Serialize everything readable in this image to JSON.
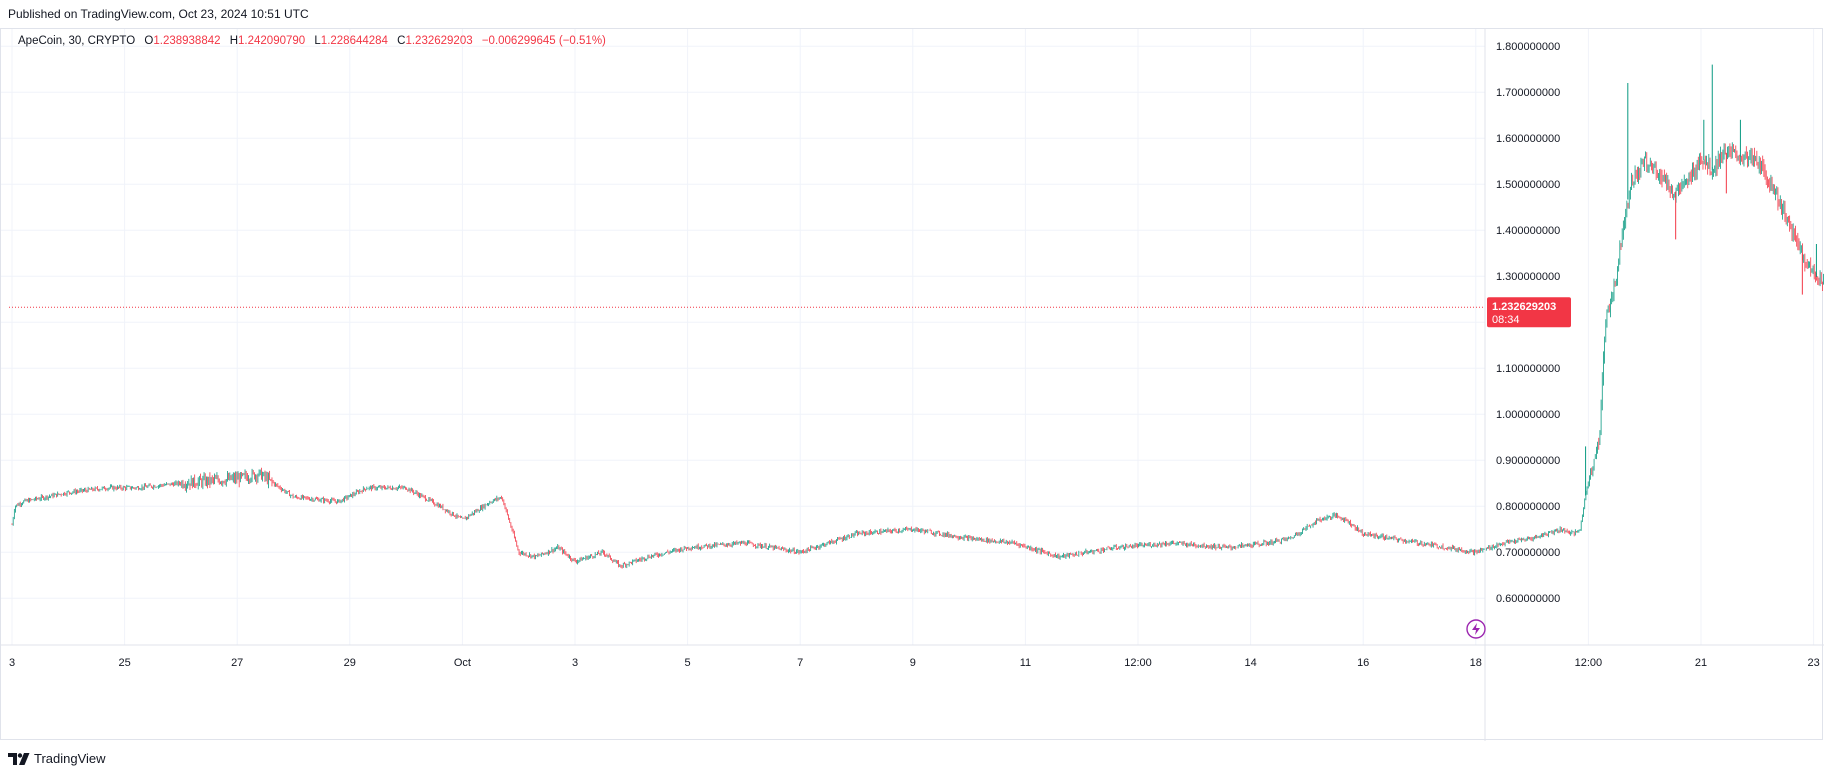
{
  "published": "Published on TradingView.com, Oct 23, 2024 10:51 UTC",
  "legend": {
    "symbol": "ApeCoin, 30, CRYPTO",
    "o_label": "O",
    "o_value": "1.238938842",
    "h_label": "H",
    "h_value": "1.242090790",
    "l_label": "L",
    "l_value": "1.228644284",
    "c_label": "C",
    "c_value": "1.232629203",
    "change": "−0.006299645 (−0.51%)"
  },
  "price_badge": {
    "price": "1.232629203",
    "countdown": "08:34"
  },
  "footer": {
    "brand": "TradingView",
    "logo_icon": "tradingview-logo-icon"
  },
  "colors": {
    "up": "#089981",
    "down": "#f23645",
    "grid": "#f0f3fa",
    "text": "#131722",
    "badge": "#f23645"
  },
  "chart_data": {
    "type": "candlestick",
    "interval": "30",
    "ylim": [
      0.52,
      1.82
    ],
    "y_ticks": [
      "0.600000000",
      "0.700000000",
      "0.800000000",
      "0.900000000",
      "1.000000000",
      "1.100000000",
      "1.200000000",
      "1.300000000",
      "1.400000000",
      "1.500000000",
      "1.600000000",
      "1.700000000",
      "1.800000000"
    ],
    "x_ticks": [
      "3",
      "25",
      "27",
      "29",
      "Oct",
      "3",
      "5",
      "7",
      "9",
      "11",
      "12:00",
      "14",
      "16",
      "18",
      "12:00",
      "21",
      "23"
    ],
    "price_path": [
      [
        0,
        0.76
      ],
      [
        0.05,
        0.8
      ],
      [
        0.2,
        0.81
      ],
      [
        1.0,
        0.83
      ],
      [
        1.7,
        0.84
      ],
      [
        2.2,
        0.84
      ],
      [
        3.0,
        0.85
      ],
      [
        4.0,
        0.86
      ],
      [
        4.4,
        0.87
      ],
      [
        5.0,
        0.82
      ],
      [
        5.8,
        0.81
      ],
      [
        6.3,
        0.84
      ],
      [
        7.0,
        0.84
      ],
      [
        7.6,
        0.8
      ],
      [
        8.0,
        0.77
      ],
      [
        8.5,
        0.81
      ],
      [
        8.7,
        0.82
      ],
      [
        8.85,
        0.76
      ],
      [
        9.0,
        0.7
      ],
      [
        9.3,
        0.69
      ],
      [
        9.7,
        0.71
      ],
      [
        10.0,
        0.68
      ],
      [
        10.5,
        0.7
      ],
      [
        10.8,
        0.67
      ],
      [
        11.3,
        0.69
      ],
      [
        12.0,
        0.71
      ],
      [
        13.0,
        0.72
      ],
      [
        14.0,
        0.7
      ],
      [
        15.0,
        0.74
      ],
      [
        16.0,
        0.75
      ],
      [
        17.0,
        0.73
      ],
      [
        17.8,
        0.72
      ],
      [
        18.6,
        0.69
      ],
      [
        19.6,
        0.71
      ],
      [
        20.6,
        0.72
      ],
      [
        21.6,
        0.71
      ],
      [
        22.3,
        0.72
      ],
      [
        22.7,
        0.73
      ],
      [
        23.2,
        0.77
      ],
      [
        23.5,
        0.78
      ],
      [
        23.7,
        0.77
      ],
      [
        24.0,
        0.74
      ],
      [
        25.0,
        0.72
      ],
      [
        26.0,
        0.7
      ],
      [
        26.5,
        0.72
      ],
      [
        27.0,
        0.73
      ],
      [
        27.5,
        0.75
      ],
      [
        27.75,
        0.74
      ],
      [
        27.85,
        0.75
      ],
      [
        28.0,
        0.86
      ],
      [
        28.1,
        0.9
      ],
      [
        28.2,
        0.95
      ],
      [
        28.3,
        1.2
      ],
      [
        28.4,
        1.25
      ],
      [
        28.5,
        1.3
      ],
      [
        28.6,
        1.4
      ],
      [
        28.75,
        1.5
      ],
      [
        29.0,
        1.55
      ],
      [
        29.3,
        1.52
      ],
      [
        29.5,
        1.48
      ],
      [
        29.75,
        1.5
      ],
      [
        30.0,
        1.56
      ],
      [
        30.2,
        1.53
      ],
      [
        30.4,
        1.57
      ],
      [
        30.7,
        1.56
      ],
      [
        31.0,
        1.55
      ],
      [
        31.3,
        1.49
      ],
      [
        31.6,
        1.4
      ],
      [
        31.8,
        1.35
      ],
      [
        32.0,
        1.3
      ],
      [
        32.3,
        1.29
      ],
      [
        32.5,
        1.24
      ],
      [
        32.6,
        1.233
      ]
    ],
    "spikes": [
      [
        27.95,
        0.93
      ],
      [
        28.7,
        1.72
      ],
      [
        29.55,
        1.38
      ],
      [
        30.05,
        1.64
      ],
      [
        30.2,
        1.76
      ],
      [
        30.45,
        1.48
      ],
      [
        30.7,
        1.64
      ],
      [
        31.8,
        1.26
      ],
      [
        32.05,
        1.37
      ]
    ],
    "last_price": 1.232629203
  }
}
